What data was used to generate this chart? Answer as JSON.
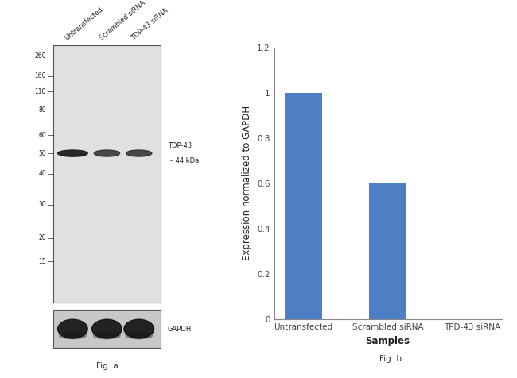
{
  "fig_width": 6.5,
  "fig_height": 4.76,
  "dpi": 100,
  "background_color": "#ffffff",
  "wb_panel": {
    "gel_color": "#e0e0e0",
    "gapdh_bg_color": "#c8c8c8",
    "gel_border_color": "#555555",
    "gel_linewidth": 0.8,
    "mw_markers": [
      260,
      160,
      110,
      80,
      60,
      50,
      40,
      30,
      20,
      15
    ],
    "mw_fracs": [
      0.04,
      0.12,
      0.18,
      0.25,
      0.35,
      0.42,
      0.5,
      0.62,
      0.75,
      0.84
    ],
    "band_color_1": "#1a1a1a",
    "band_color_23": "#2d2d2d",
    "gapdh_band_color": "#111111",
    "sample_labels": [
      "Untransfected",
      "Scrambled siRNA",
      "TDP-43 siRNA"
    ],
    "tdp43_label": "TDP-43",
    "tdp43_kda": "~ 44 kDa",
    "gapdh_label": "GAPDH",
    "fig_a_label": "Fig. a"
  },
  "bar_panel": {
    "categories": [
      "Untransfected",
      "Scrambled siRNA",
      "TPD-43 siRNA"
    ],
    "values": [
      1.0,
      0.6,
      0.0
    ],
    "bar_color": "#4e7fc4",
    "bar_width": 0.45,
    "ylim": [
      0,
      1.2
    ],
    "yticks": [
      0,
      0.2,
      0.4,
      0.6,
      0.8,
      1.0,
      1.2
    ],
    "ytick_labels": [
      "0",
      "0.2",
      "0.4",
      "0.6",
      "0.8",
      "1",
      "1.2"
    ],
    "ylabel": "Expression normalized to GAPDH",
    "xlabel": "Samples",
    "fig_b_label": "Fig. b",
    "tick_fontsize": 7.5,
    "label_fontsize": 8.5,
    "axis_color": "#888888"
  }
}
